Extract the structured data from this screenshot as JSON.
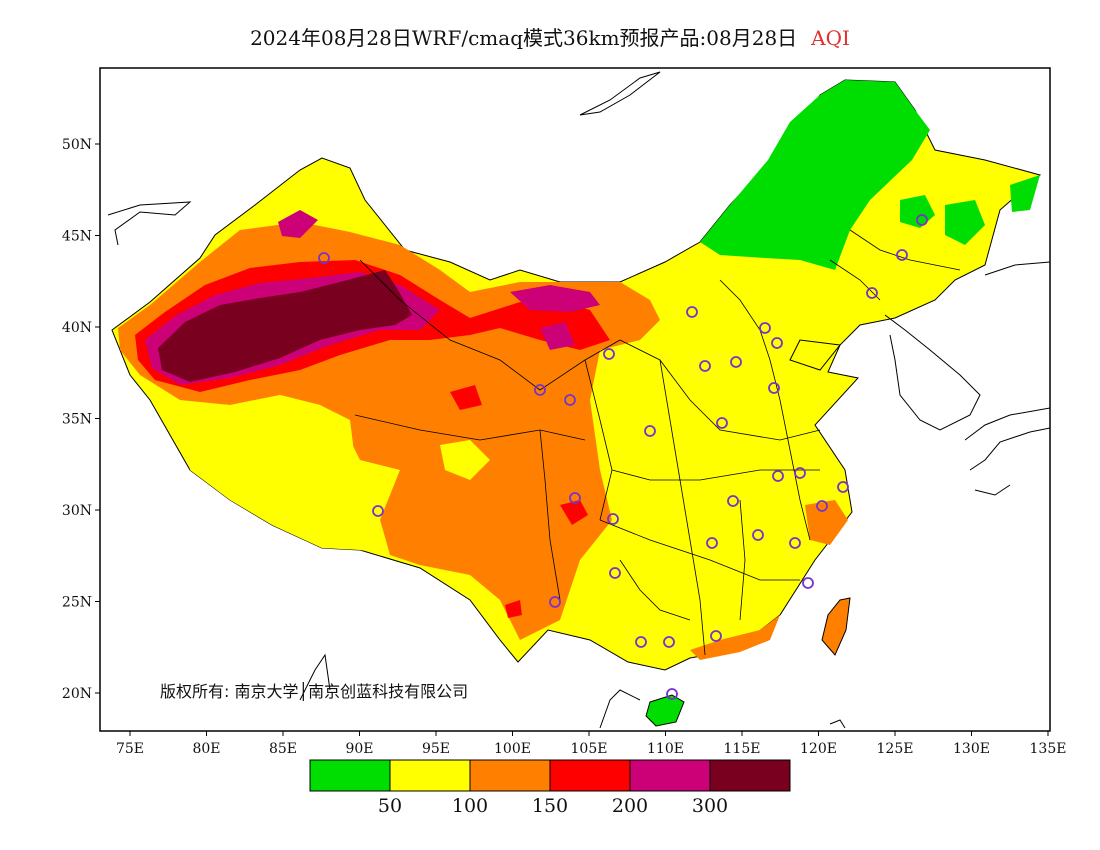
{
  "title": {
    "main": "2024年08月28日WRF/cmaq模式36km预报产品:08月28日",
    "variable": "AQI",
    "variable_color": "#e03030"
  },
  "axes": {
    "x_ticks": [
      "75E",
      "80E",
      "85E",
      "90E",
      "95E",
      "100E",
      "105E",
      "110E",
      "115E",
      "120E",
      "125E",
      "130E",
      "135E"
    ],
    "y_ticks": [
      "50N",
      "45N",
      "40N",
      "35N",
      "30N",
      "25N",
      "20N"
    ]
  },
  "copyright": "版权所有: 南京大学│南京创蓝科技有限公司",
  "legend": {
    "colors": [
      "#00dd00",
      "#ffff00",
      "#ff8000",
      "#ff0000",
      "#cc0077",
      "#7a0020"
    ],
    "labels": [
      "50",
      "100",
      "150",
      "200",
      "300"
    ]
  },
  "stations": {
    "marker": "circle",
    "color": "#7733cc",
    "count": 33
  }
}
